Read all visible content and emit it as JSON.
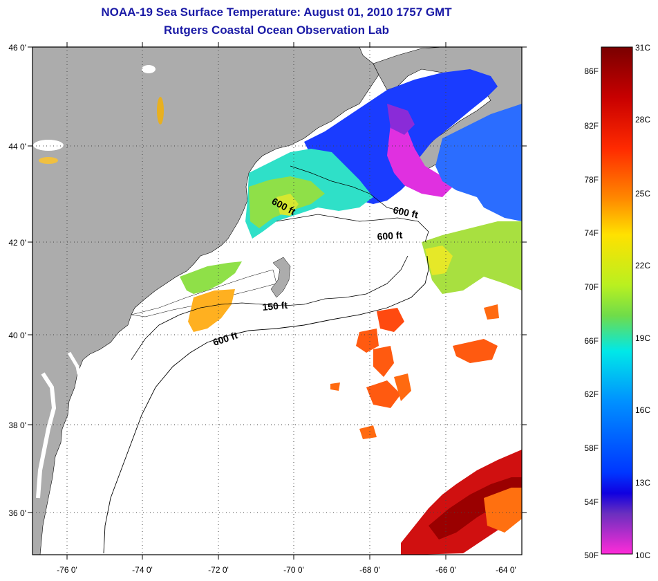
{
  "title": "NOAA-19 Sea Surface Temperature:  August 01, 2010 1757 GMT",
  "subtitle": "Rutgers Coastal Ocean Observation Lab",
  "lat_labels": [
    "46 0'",
    "44 0'",
    "42 0'",
    "40 0'",
    "38 0'",
    "36 0'"
  ],
  "lon_labels": [
    "-76 0'",
    "-74 0'",
    "-72 0'",
    "-70 0'",
    "-68 0'",
    "-66 0'",
    "-64 0'"
  ],
  "contour_labels": [
    "600 ft",
    "600 ft",
    "600 ft",
    "150 ft",
    "600 ft"
  ],
  "colorbar": {
    "fahrenheit": [
      "86F",
      "82F",
      "78F",
      "74F",
      "70F",
      "66F",
      "62F",
      "58F",
      "54F",
      "50F"
    ],
    "celsius": [
      "31C",
      "28C",
      "25C",
      "22C",
      "19C",
      "16C",
      "13C",
      "10C"
    ]
  },
  "colors": {
    "land": "#acacac",
    "ocean_nodata": "#ffffff",
    "title": "#1a1aa6",
    "scale_top": "#7a0000",
    "scale_warm": "#ff2a00",
    "scale_mid": "#ffe100",
    "scale_green": "#7cd93c",
    "scale_cyan": "#00e8e8",
    "scale_blue": "#0036ff",
    "scale_violet": "#6a2fbf",
    "scale_bottom": "#ff2bd8"
  }
}
